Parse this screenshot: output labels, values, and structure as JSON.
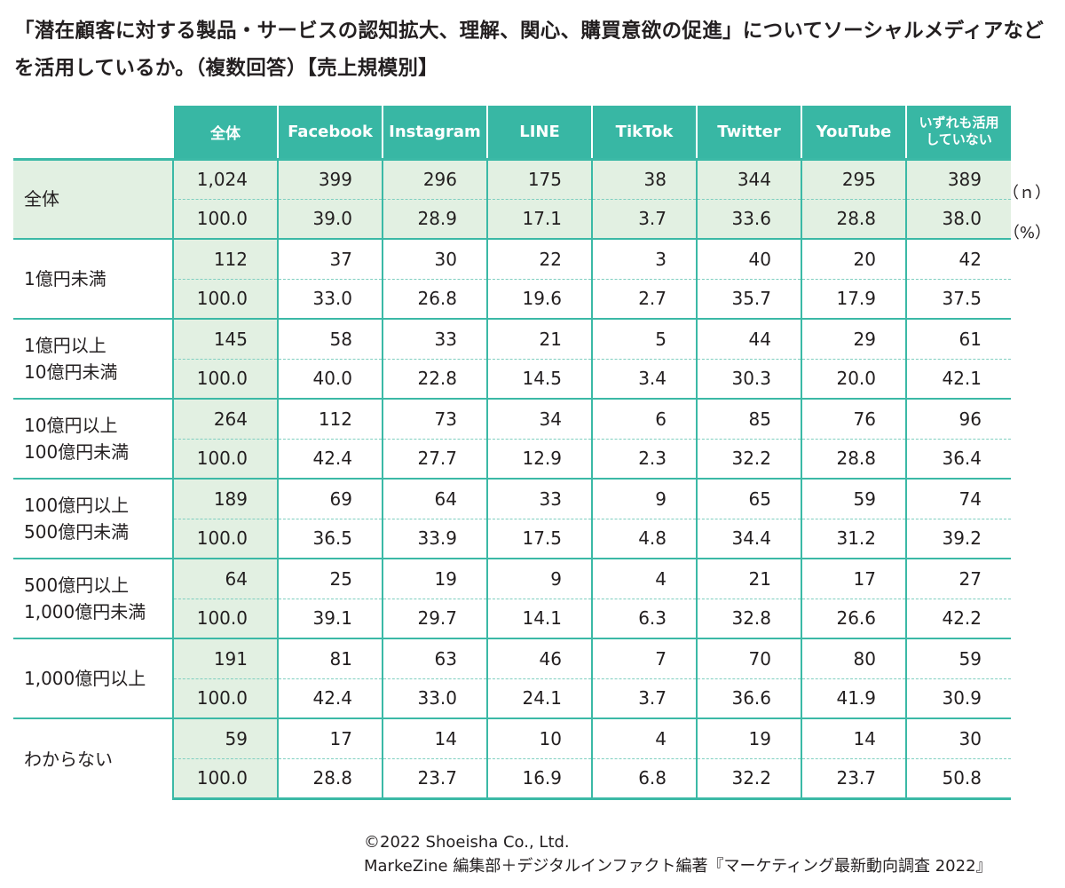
{
  "title": "「潜在顧客に対する製品・サービスの認知拡大、理解、関心、購買意欲の促進」についてソーシャルメディアなどを活用しているか。（複数回答）【売上規模別】",
  "columns": [
    "全体",
    "Facebook",
    "Instagram",
    "LINE",
    "TikTok",
    "Twitter",
    "YouTube",
    "いずれも活用\nしていない"
  ],
  "units": {
    "n": "（ｎ）",
    "pct": "（%）"
  },
  "rows": [
    {
      "label": "全体",
      "n": [
        "1,024",
        "399",
        "296",
        "175",
        "38",
        "344",
        "295",
        "389"
      ],
      "pct": [
        "100.0",
        "39.0",
        "28.9",
        "17.1",
        "3.7",
        "33.6",
        "28.8",
        "38.0"
      ]
    },
    {
      "label": "1億円未満",
      "n": [
        "112",
        "37",
        "30",
        "22",
        "3",
        "40",
        "20",
        "42"
      ],
      "pct": [
        "100.0",
        "33.0",
        "26.8",
        "19.6",
        "2.7",
        "35.7",
        "17.9",
        "37.5"
      ]
    },
    {
      "label": "1億円以上\n10億円未満",
      "n": [
        "145",
        "58",
        "33",
        "21",
        "5",
        "44",
        "29",
        "61"
      ],
      "pct": [
        "100.0",
        "40.0",
        "22.8",
        "14.5",
        "3.4",
        "30.3",
        "20.0",
        "42.1"
      ]
    },
    {
      "label": "10億円以上\n100億円未満",
      "n": [
        "264",
        "112",
        "73",
        "34",
        "6",
        "85",
        "76",
        "96"
      ],
      "pct": [
        "100.0",
        "42.4",
        "27.7",
        "12.9",
        "2.3",
        "32.2",
        "28.8",
        "36.4"
      ]
    },
    {
      "label": "100億円以上\n500億円未満",
      "n": [
        "189",
        "69",
        "64",
        "33",
        "9",
        "65",
        "59",
        "74"
      ],
      "pct": [
        "100.0",
        "36.5",
        "33.9",
        "17.5",
        "4.8",
        "34.4",
        "31.2",
        "39.2"
      ]
    },
    {
      "label": "500億円以上\n1,000億円未満",
      "n": [
        "64",
        "25",
        "19",
        "9",
        "4",
        "21",
        "17",
        "27"
      ],
      "pct": [
        "100.0",
        "39.1",
        "29.7",
        "14.1",
        "6.3",
        "32.8",
        "26.6",
        "42.2"
      ]
    },
    {
      "label": "1,000億円以上",
      "n": [
        "191",
        "81",
        "63",
        "46",
        "7",
        "70",
        "80",
        "59"
      ],
      "pct": [
        "100.0",
        "42.4",
        "33.0",
        "24.1",
        "3.7",
        "36.6",
        "41.9",
        "30.9"
      ]
    },
    {
      "label": "わからない",
      "n": [
        "59",
        "17",
        "14",
        "10",
        "4",
        "19",
        "14",
        "30"
      ],
      "pct": [
        "100.0",
        "28.8",
        "23.7",
        "16.9",
        "6.8",
        "32.2",
        "23.7",
        "50.8"
      ]
    }
  ],
  "chart_data": {
    "type": "table",
    "categories": [
      "全体",
      "1億円未満",
      "1億円以上10億円未満",
      "10億円以上100億円未満",
      "100億円以上500億円未満",
      "500億円以上1,000億円未満",
      "1,000億円以上",
      "わからない"
    ],
    "series": [
      {
        "name": "全体",
        "values": [
          100.0,
          100.0,
          100.0,
          100.0,
          100.0,
          100.0,
          100.0,
          100.0
        ]
      },
      {
        "name": "Facebook",
        "values": [
          39.0,
          33.0,
          40.0,
          42.4,
          36.5,
          39.1,
          42.4,
          28.8
        ]
      },
      {
        "name": "Instagram",
        "values": [
          28.9,
          26.8,
          22.8,
          27.7,
          33.9,
          29.7,
          33.0,
          23.7
        ]
      },
      {
        "name": "LINE",
        "values": [
          17.1,
          19.6,
          14.5,
          12.9,
          17.5,
          14.1,
          24.1,
          16.9
        ]
      },
      {
        "name": "TikTok",
        "values": [
          3.7,
          2.7,
          3.4,
          2.3,
          4.8,
          6.3,
          3.7,
          6.8
        ]
      },
      {
        "name": "Twitter",
        "values": [
          33.6,
          35.7,
          30.3,
          32.2,
          34.4,
          32.8,
          36.6,
          32.2
        ]
      },
      {
        "name": "YouTube",
        "values": [
          28.8,
          17.9,
          20.0,
          28.8,
          31.2,
          26.6,
          41.9,
          23.7
        ]
      },
      {
        "name": "いずれも活用していない",
        "values": [
          38.0,
          37.5,
          42.1,
          36.4,
          39.2,
          42.2,
          30.9,
          50.8
        ]
      }
    ]
  },
  "credits": {
    "line1": "©2022 Shoeisha Co., Ltd.",
    "line2": "MarkeZine 編集部＋デジタルインファクト編著『マーケティング最新動向調査 2022』"
  },
  "colors": {
    "header": "#38b7a4",
    "highlight": "#e2f0e2",
    "rule": "#3bb9a6"
  }
}
